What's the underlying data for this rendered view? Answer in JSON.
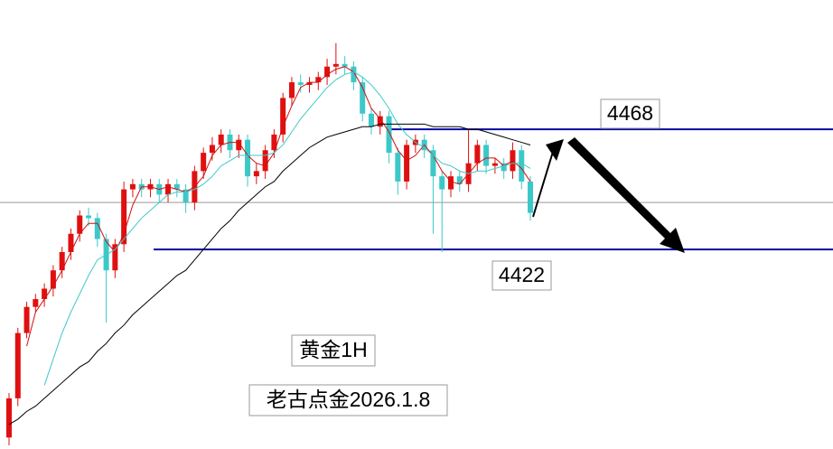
{
  "chart_data": {
    "type": "candlestick",
    "annotations": [
      "黄金1H",
      "老古点金2026.1.8"
    ],
    "levels": [
      4468,
      4422
    ],
    "level_color": "#0a0aa0",
    "price_line": 4440,
    "ylim": [
      4345.6,
      4517.5
    ],
    "up_color": "#e01010",
    "down_color": "#3cc8c8",
    "open": [
      4350,
      4365,
      4390,
      4400,
      4403,
      4407,
      4414,
      4421,
      4428,
      4435,
      4434,
      4426,
      4414,
      4424,
      4445,
      4447,
      4445,
      4447,
      4443,
      4447,
      4445,
      4440,
      4452,
      4459,
      4462,
      4466,
      4460,
      4464,
      4450,
      4452,
      4460,
      4466,
      4480,
      4486,
      4485,
      4486,
      4488,
      4492,
      4493,
      4492,
      4486,
      4474,
      4469,
      4473,
      4459,
      4448,
      4462,
      4464,
      4460,
      4450,
      4445,
      4450,
      4447,
      4455,
      4462,
      4454,
      4455,
      4452,
      4460,
      4448
    ],
    "high": [
      4367,
      4392,
      4402,
      4405,
      4409,
      4416,
      4423,
      4430,
      4437,
      4438,
      4436,
      4428,
      4426,
      4448,
      4449,
      4449,
      4449,
      4449,
      4449,
      4449,
      4447,
      4454,
      4461,
      4465,
      4468,
      4468,
      4466,
      4466,
      4455,
      4462,
      4468,
      4482,
      4488,
      4489,
      4488,
      4490,
      4495,
      4501,
      4496,
      4494,
      4488,
      4476,
      4475,
      4475,
      4461,
      4464,
      4466,
      4466,
      4462,
      4452,
      4452,
      4452,
      4468,
      4464,
      4464,
      4457,
      4457,
      4463,
      4462,
      4450
    ],
    "low": [
      4347,
      4362,
      4388,
      4398,
      4400,
      4404,
      4411,
      4418,
      4425,
      4431,
      4423,
      4394,
      4411,
      4421,
      4442,
      4442,
      4442,
      4440,
      4440,
      4442,
      4436,
      4437,
      4449,
      4456,
      4459,
      4457,
      4457,
      4446,
      4447,
      4449,
      4457,
      4463,
      4477,
      4482,
      4482,
      4483,
      4485,
      4489,
      4489,
      4483,
      4471,
      4466,
      4466,
      4455,
      4443,
      4445,
      4459,
      4457,
      4428,
      4421,
      4442,
      4444,
      4444,
      4452,
      4451,
      4451,
      4449,
      4449,
      4445,
      4433
    ],
    "close": [
      4365,
      4390,
      4400,
      4403,
      4407,
      4414,
      4421,
      4428,
      4435,
      4434,
      4426,
      4414,
      4424,
      4445,
      4447,
      4445,
      4447,
      4443,
      4447,
      4445,
      4440,
      4452,
      4459,
      4462,
      4466,
      4460,
      4464,
      4450,
      4452,
      4460,
      4466,
      4480,
      4486,
      4485,
      4486,
      4488,
      4492,
      4493,
      4492,
      4486,
      4474,
      4469,
      4473,
      4459,
      4448,
      4462,
      4464,
      4460,
      4450,
      4445,
      4450,
      4447,
      4455,
      4462,
      4454,
      4455,
      4452,
      4460,
      4448,
      4436
    ],
    "series": [
      {
        "color": "#d01010",
        "values": [
          null,
          null,
          4385,
          4398,
          4403,
          4408,
          4414,
          4421,
          4428,
          4432,
          4432,
          4425,
          4421,
          4428,
          4439,
          4446,
          4446,
          4445,
          4446,
          4445,
          4444,
          4446,
          4450,
          4458,
          4462,
          4463,
          4463,
          4458,
          4455,
          4454,
          4459,
          4469,
          4477,
          4484,
          4486,
          4486,
          4489,
          4491,
          4492,
          4490,
          4484,
          4476,
          4472,
          4467,
          4460,
          4456,
          4458,
          4462,
          4458,
          4452,
          4448,
          4447,
          4451,
          4455,
          4457,
          4457,
          4454,
          4456,
          4453,
          4448
        ]
      },
      {
        "color": "#40c8c8",
        "values": [
          null,
          null,
          null,
          null,
          4370,
          4380,
          4390,
          4398,
          4405,
          4412,
          4418,
          4420,
          4422,
          4426,
          4430,
          4434,
          4437,
          4440,
          4443,
          4444,
          4444,
          4445,
          4447,
          4450,
          4454,
          4456,
          4458,
          4458,
          4458,
          4458,
          4459,
          4462,
          4467,
          4472,
          4476,
          4480,
          4484,
          4487,
          4489,
          4490,
          4488,
          4485,
          4481,
          4476,
          4470,
          4466,
          4463,
          4461,
          4458,
          4455,
          4454,
          4452,
          4451,
          4452,
          4452,
          4453,
          4454,
          4455,
          4455,
          4453
        ]
      },
      {
        "color": "#000000",
        "values": [
          4355,
          4357,
          4360,
          4362,
          4365,
          4368,
          4371,
          4374,
          4377,
          4379,
          4383,
          4386,
          4390,
          4393,
          4397,
          4400,
          4403,
          4406,
          4409,
          4412,
          4414,
          4418,
          4422,
          4426,
          4430,
          4433,
          4437,
          4440,
          4443,
          4446,
          4448,
          4452,
          4455,
          4458,
          4461,
          4463,
          4465,
          4466,
          4467,
          4468,
          4469,
          4469,
          4470,
          4470,
          4470,
          4470,
          4470,
          4470,
          4469,
          4469,
          4469,
          4469,
          4468,
          4468,
          4467,
          4466,
          4465,
          4464,
          4463,
          4462
        ]
      }
    ]
  }
}
